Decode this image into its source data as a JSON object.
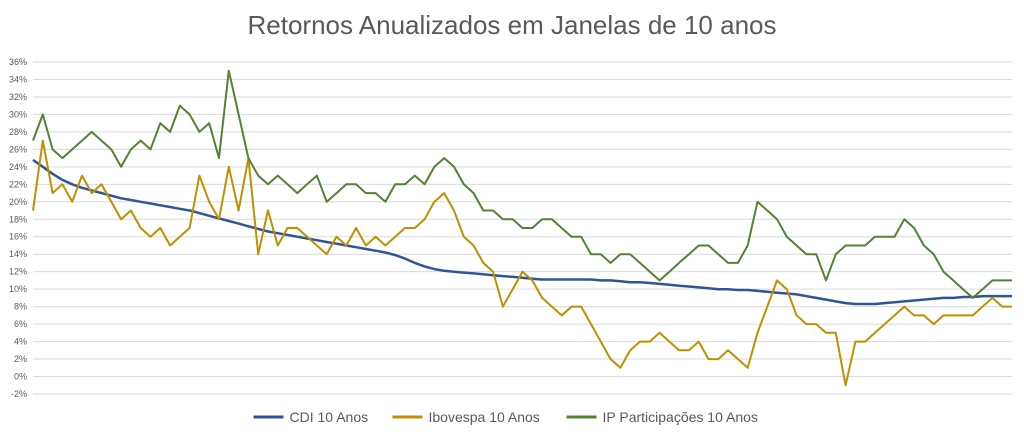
{
  "chart_data": {
    "type": "line",
    "title": "Retornos Anualizados em Janelas de 10 anos",
    "xlabel": "",
    "ylabel": "",
    "ylim": [
      -0.02,
      0.36
    ],
    "y_ticks": [
      "-2%",
      "0%",
      "2%",
      "4%",
      "6%",
      "8%",
      "10%",
      "12%",
      "14%",
      "16%",
      "18%",
      "20%",
      "22%",
      "24%",
      "26%",
      "28%",
      "30%",
      "32%",
      "34%",
      "36%"
    ],
    "grid": true,
    "legend_position": "bottom",
    "x": [
      0,
      0.01,
      0.02,
      0.03,
      0.04,
      0.05,
      0.06,
      0.07,
      0.08,
      0.09,
      0.1,
      0.11,
      0.12,
      0.13,
      0.14,
      0.15,
      0.16,
      0.17,
      0.18,
      0.19,
      0.2,
      0.21,
      0.22,
      0.23,
      0.24,
      0.25,
      0.26,
      0.27,
      0.28,
      0.29,
      0.3,
      0.31,
      0.32,
      0.33,
      0.34,
      0.35,
      0.36,
      0.37,
      0.38,
      0.39,
      0.4,
      0.41,
      0.42,
      0.43,
      0.44,
      0.45,
      0.46,
      0.47,
      0.48,
      0.49,
      0.5,
      0.51,
      0.52,
      0.53,
      0.54,
      0.55,
      0.56,
      0.57,
      0.58,
      0.59,
      0.6,
      0.61,
      0.62,
      0.63,
      0.64,
      0.65,
      0.66,
      0.67,
      0.68,
      0.69,
      0.7,
      0.71,
      0.72,
      0.73,
      0.74,
      0.75,
      0.76,
      0.77,
      0.78,
      0.79,
      0.8,
      0.81,
      0.82,
      0.83,
      0.84,
      0.85,
      0.86,
      0.87,
      0.88,
      0.89,
      0.9,
      0.91,
      0.92,
      0.93,
      0.94,
      0.95,
      0.96,
      0.97,
      0.98,
      0.99,
      1.0
    ],
    "series": [
      {
        "name": "CDI 10 Anos",
        "color": "#2F5597",
        "values": [
          0.248,
          0.24,
          0.232,
          0.225,
          0.22,
          0.216,
          0.213,
          0.21,
          0.207,
          0.204,
          0.202,
          0.2,
          0.198,
          0.196,
          0.194,
          0.192,
          0.19,
          0.187,
          0.184,
          0.181,
          0.178,
          0.175,
          0.172,
          0.169,
          0.166,
          0.164,
          0.162,
          0.16,
          0.158,
          0.156,
          0.154,
          0.152,
          0.15,
          0.148,
          0.146,
          0.144,
          0.142,
          0.139,
          0.135,
          0.13,
          0.126,
          0.123,
          0.121,
          0.12,
          0.119,
          0.118,
          0.117,
          0.116,
          0.115,
          0.114,
          0.113,
          0.112,
          0.111,
          0.111,
          0.111,
          0.111,
          0.111,
          0.111,
          0.11,
          0.11,
          0.109,
          0.108,
          0.108,
          0.107,
          0.106,
          0.105,
          0.104,
          0.103,
          0.102,
          0.101,
          0.1,
          0.1,
          0.099,
          0.099,
          0.098,
          0.097,
          0.096,
          0.095,
          0.094,
          0.092,
          0.09,
          0.088,
          0.086,
          0.084,
          0.083,
          0.083,
          0.083,
          0.084,
          0.085,
          0.086,
          0.087,
          0.088,
          0.089,
          0.09,
          0.09,
          0.091,
          0.091,
          0.092,
          0.092,
          0.092,
          0.092
        ]
      },
      {
        "name": "Ibovespa 10 Anos",
        "color": "#BF9000",
        "values": [
          0.19,
          0.27,
          0.21,
          0.22,
          0.2,
          0.23,
          0.21,
          0.22,
          0.2,
          0.18,
          0.19,
          0.17,
          0.16,
          0.17,
          0.15,
          0.16,
          0.17,
          0.23,
          0.2,
          0.18,
          0.24,
          0.19,
          0.25,
          0.14,
          0.19,
          0.15,
          0.17,
          0.17,
          0.16,
          0.15,
          0.14,
          0.16,
          0.15,
          0.17,
          0.15,
          0.16,
          0.15,
          0.16,
          0.17,
          0.17,
          0.18,
          0.2,
          0.21,
          0.19,
          0.16,
          0.15,
          0.13,
          0.12,
          0.08,
          0.1,
          0.12,
          0.11,
          0.09,
          0.08,
          0.07,
          0.08,
          0.08,
          0.06,
          0.04,
          0.02,
          0.01,
          0.03,
          0.04,
          0.04,
          0.05,
          0.04,
          0.03,
          0.03,
          0.04,
          0.02,
          0.02,
          0.03,
          0.02,
          0.01,
          0.05,
          0.08,
          0.11,
          0.1,
          0.07,
          0.06,
          0.06,
          0.05,
          0.05,
          -0.01,
          0.04,
          0.04,
          0.05,
          0.06,
          0.07,
          0.08,
          0.07,
          0.07,
          0.06,
          0.07,
          0.07,
          0.07,
          0.07,
          0.08,
          0.09,
          0.08,
          0.08
        ]
      },
      {
        "name": "IP Participações 10 Anos",
        "color": "#548235",
        "values": [
          0.27,
          0.3,
          0.26,
          0.25,
          0.26,
          0.27,
          0.28,
          0.27,
          0.26,
          0.24,
          0.26,
          0.27,
          0.26,
          0.29,
          0.28,
          0.31,
          0.3,
          0.28,
          0.29,
          0.25,
          0.35,
          0.3,
          0.25,
          0.23,
          0.22,
          0.23,
          0.22,
          0.21,
          0.22,
          0.23,
          0.2,
          0.21,
          0.22,
          0.22,
          0.21,
          0.21,
          0.2,
          0.22,
          0.22,
          0.23,
          0.22,
          0.24,
          0.25,
          0.24,
          0.22,
          0.21,
          0.19,
          0.19,
          0.18,
          0.18,
          0.17,
          0.17,
          0.18,
          0.18,
          0.17,
          0.16,
          0.16,
          0.14,
          0.14,
          0.13,
          0.14,
          0.14,
          0.13,
          0.12,
          0.11,
          0.12,
          0.13,
          0.14,
          0.15,
          0.15,
          0.14,
          0.13,
          0.13,
          0.15,
          0.2,
          0.19,
          0.18,
          0.16,
          0.15,
          0.14,
          0.14,
          0.11,
          0.14,
          0.15,
          0.15,
          0.15,
          0.16,
          0.16,
          0.16,
          0.18,
          0.17,
          0.15,
          0.14,
          0.12,
          0.11,
          0.1,
          0.09,
          0.1,
          0.11,
          0.11,
          0.11
        ]
      }
    ]
  }
}
